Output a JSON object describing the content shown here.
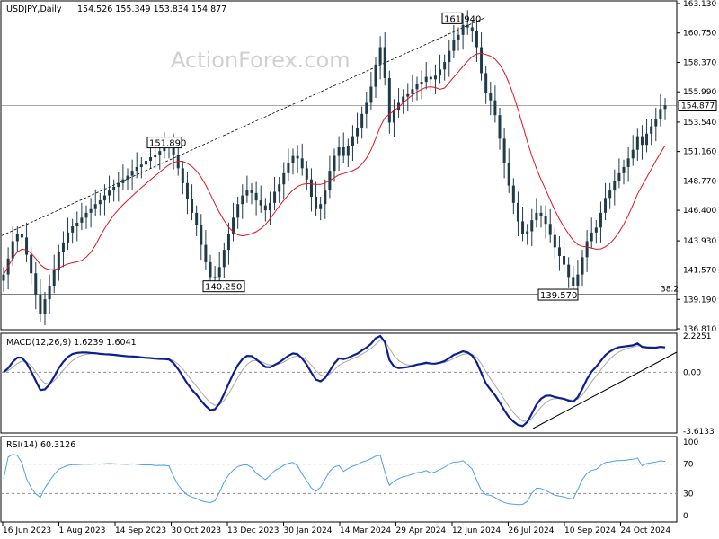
{
  "header": {
    "symbol": "USDJPY,Daily",
    "ohlc": "154.526 155.349 153.834 154.877"
  },
  "watermark": "ActionForex.com",
  "colors": {
    "price": "#1f3a4a",
    "ma": "#e0141c",
    "macd": "#0c1f8f",
    "signal": "#a8a8a8",
    "rsi": "#4aa0ee",
    "grid_dash": "#909090"
  },
  "chart_data": [
    {
      "type": "candlestick",
      "panel": "price",
      "title": "USDJPY,Daily",
      "yticks": [
        "163.130",
        "160.750",
        "158.370",
        "155.990",
        "153.540",
        "151.160",
        "148.770",
        "146.400",
        "143.930",
        "141.570",
        "139.190",
        "136.810"
      ],
      "ylim": [
        136.81,
        163.13
      ],
      "last_price": "154.877",
      "levels": [
        {
          "label": "38.2",
          "value": 139.6
        }
      ],
      "annotations": [
        {
          "text": "151.890",
          "value": 151.89
        },
        {
          "text": "140.250",
          "value": 140.25
        },
        {
          "text": "161.940",
          "value": 161.94
        },
        {
          "text": "139.570",
          "value": 139.57
        }
      ],
      "close": [
        141.2,
        142.5,
        143.9,
        144.5,
        144.2,
        142.8,
        141.3,
        139.6,
        138.0,
        139.2,
        140.3,
        141.6,
        143.0,
        143.8,
        144.6,
        145.1,
        145.4,
        145.8,
        146.2,
        146.5,
        146.9,
        147.2,
        147.6,
        148.0,
        148.3,
        148.6,
        148.9,
        149.2,
        149.6,
        149.9,
        150.1,
        150.4,
        150.7,
        150.9,
        151.2,
        151.5,
        151.7,
        150.9,
        149.8,
        148.6,
        147.3,
        146.2,
        145.2,
        143.6,
        142.2,
        141.0,
        141.0,
        141.8,
        143.2,
        144.5,
        145.8,
        146.9,
        147.6,
        148.0,
        147.8,
        147.2,
        146.8,
        146.4,
        147.0,
        147.9,
        148.5,
        149.4,
        150.2,
        150.8,
        150.6,
        149.8,
        148.9,
        147.5,
        146.5,
        146.9,
        148.0,
        149.6,
        150.8,
        151.5,
        150.8,
        151.6,
        152.4,
        153.1,
        154.2,
        155.1,
        156.4,
        158.2,
        159.6,
        157.1,
        153.5,
        154.5,
        155.1,
        155.6,
        155.8,
        156.2,
        156.6,
        156.8,
        157.2,
        157.0,
        157.3,
        157.8,
        158.4,
        159.3,
        160.2,
        160.6,
        161.4,
        161.2,
        160.9,
        159.6,
        157.5,
        155.9,
        155.3,
        154.1,
        152.2,
        150.2,
        148.4,
        147.0,
        145.5,
        144.5,
        144.7,
        145.6,
        146.2,
        145.9,
        145.3,
        144.4,
        143.4,
        142.7,
        142.0,
        141.0,
        140.3,
        141.2,
        142.6,
        143.9,
        144.6,
        145.0,
        146.2,
        147.4,
        148.0,
        148.8,
        149.4,
        149.9,
        150.6,
        151.3,
        152.4,
        151.7,
        152.6,
        153.2,
        153.8,
        154.6,
        154.9
      ]
    },
    {
      "type": "line",
      "panel": "macd",
      "title": "MACD(12,26,9) 1.6239 1.6041",
      "yticks": [
        "2.2251",
        "0.00",
        "-3.6133"
      ],
      "ylim": [
        -3.6133,
        2.2251
      ]
    },
    {
      "type": "line",
      "panel": "rsi",
      "title": "RSI(14) 60.3126",
      "yticks": [
        "100",
        "70",
        "30",
        "0"
      ],
      "ylim": [
        0,
        100
      ],
      "levels": [
        70,
        30
      ]
    }
  ],
  "xaxis": {
    "labels": [
      "16 Jun 2023",
      "1 Aug 2023",
      "14 Sep 2023",
      "30 Oct 2023",
      "13 Dec 2023",
      "30 Jan 2024",
      "14 Mar 2024",
      "29 Apr 2024",
      "12 Jun 2024",
      "26 Jul 2024",
      "10 Sep 2024",
      "24 Oct 2024"
    ]
  }
}
